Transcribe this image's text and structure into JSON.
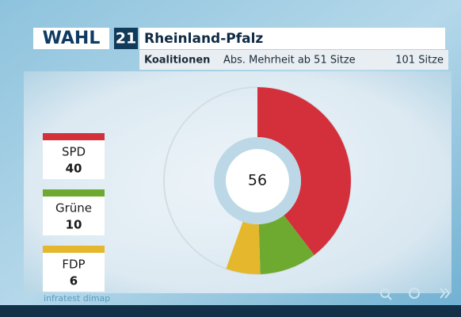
{
  "header": {
    "brand": "WAHL",
    "year": "21"
  },
  "chart_data": {
    "type": "donut",
    "title": "Rheinland-Pfalz",
    "subtitle": "Koalitionen",
    "majority": {
      "value": 51,
      "label": "Abs. Mehrheit ab 51 Sitze"
    },
    "seat_total": {
      "value": 101,
      "label": "101 Sitze"
    },
    "center_value": 56,
    "series": [
      {
        "name": "SPD",
        "color": "#d3303c",
        "values": [
          40
        ]
      },
      {
        "name": "Grüne",
        "color": "#6eaa30",
        "values": [
          10
        ]
      },
      {
        "name": "FDP",
        "color": "#e5b72c",
        "values": [
          6
        ]
      }
    ],
    "source": "infratest dimap"
  }
}
